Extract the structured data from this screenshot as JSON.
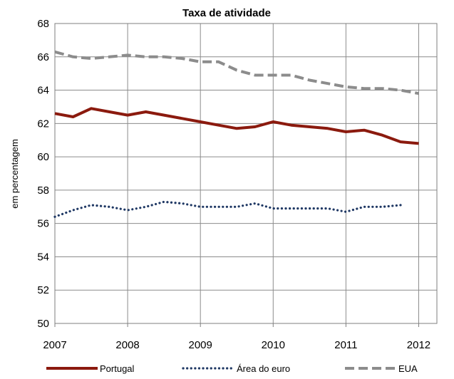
{
  "chart_data": {
    "type": "line",
    "title": "Taxa de atividade",
    "xlabel": "",
    "ylabel": "em percentagem",
    "ylim": [
      50,
      68
    ],
    "yticks": [
      50,
      52,
      54,
      56,
      58,
      60,
      62,
      64,
      66,
      68
    ],
    "xlim": [
      2007,
      2012.25
    ],
    "xticks": [
      2007,
      2008,
      2009,
      2010,
      2011,
      2012
    ],
    "xtick_labels": [
      "2007",
      "2008",
      "2009",
      "2010",
      "2011",
      "2012"
    ],
    "grid": true,
    "legend_position": "bottom",
    "series": [
      {
        "name": "Portugal",
        "style": "solid",
        "color": "#8B1A0E",
        "x": [
          2007.0,
          2007.25,
          2007.5,
          2007.75,
          2008.0,
          2008.25,
          2008.5,
          2008.75,
          2009.0,
          2009.25,
          2009.5,
          2009.75,
          2010.0,
          2010.25,
          2010.5,
          2010.75,
          2011.0,
          2011.25,
          2011.5,
          2011.75,
          2012.0,
          2012.25
        ],
        "values": [
          62.6,
          62.4,
          62.9,
          62.7,
          62.5,
          62.7,
          62.5,
          62.3,
          62.1,
          61.9,
          61.7,
          61.8,
          62.1,
          61.9,
          61.8,
          61.7,
          61.5,
          61.6,
          61.3,
          60.9,
          60.8,
          null
        ]
      },
      {
        "name": "Área do euro",
        "style": "dotted",
        "color": "#1F3864",
        "x": [
          2007.0,
          2007.25,
          2007.5,
          2007.75,
          2008.0,
          2008.25,
          2008.5,
          2008.75,
          2009.0,
          2009.25,
          2009.5,
          2009.75,
          2010.0,
          2010.25,
          2010.5,
          2010.75,
          2011.0,
          2011.25,
          2011.5,
          2011.75
        ],
        "values": [
          56.4,
          56.8,
          57.1,
          57.0,
          56.8,
          57.0,
          57.3,
          57.2,
          57.0,
          57.0,
          57.0,
          57.2,
          56.9,
          56.9,
          56.9,
          56.9,
          56.7,
          57.0,
          57.0,
          57.1
        ]
      },
      {
        "name": "EUA",
        "style": "dashed",
        "color": "#8C8C8C",
        "x": [
          2007.0,
          2007.25,
          2007.5,
          2007.75,
          2008.0,
          2008.25,
          2008.5,
          2008.75,
          2009.0,
          2009.25,
          2009.5,
          2009.75,
          2010.0,
          2010.25,
          2010.5,
          2010.75,
          2011.0,
          2011.25,
          2011.5,
          2011.75,
          2012.0
        ],
        "values": [
          66.3,
          66.0,
          65.9,
          66.0,
          66.1,
          66.0,
          66.0,
          65.9,
          65.7,
          65.7,
          65.2,
          64.9,
          64.9,
          64.9,
          64.6,
          64.4,
          64.2,
          64.1,
          64.1,
          64.0,
          63.8
        ]
      }
    ]
  }
}
